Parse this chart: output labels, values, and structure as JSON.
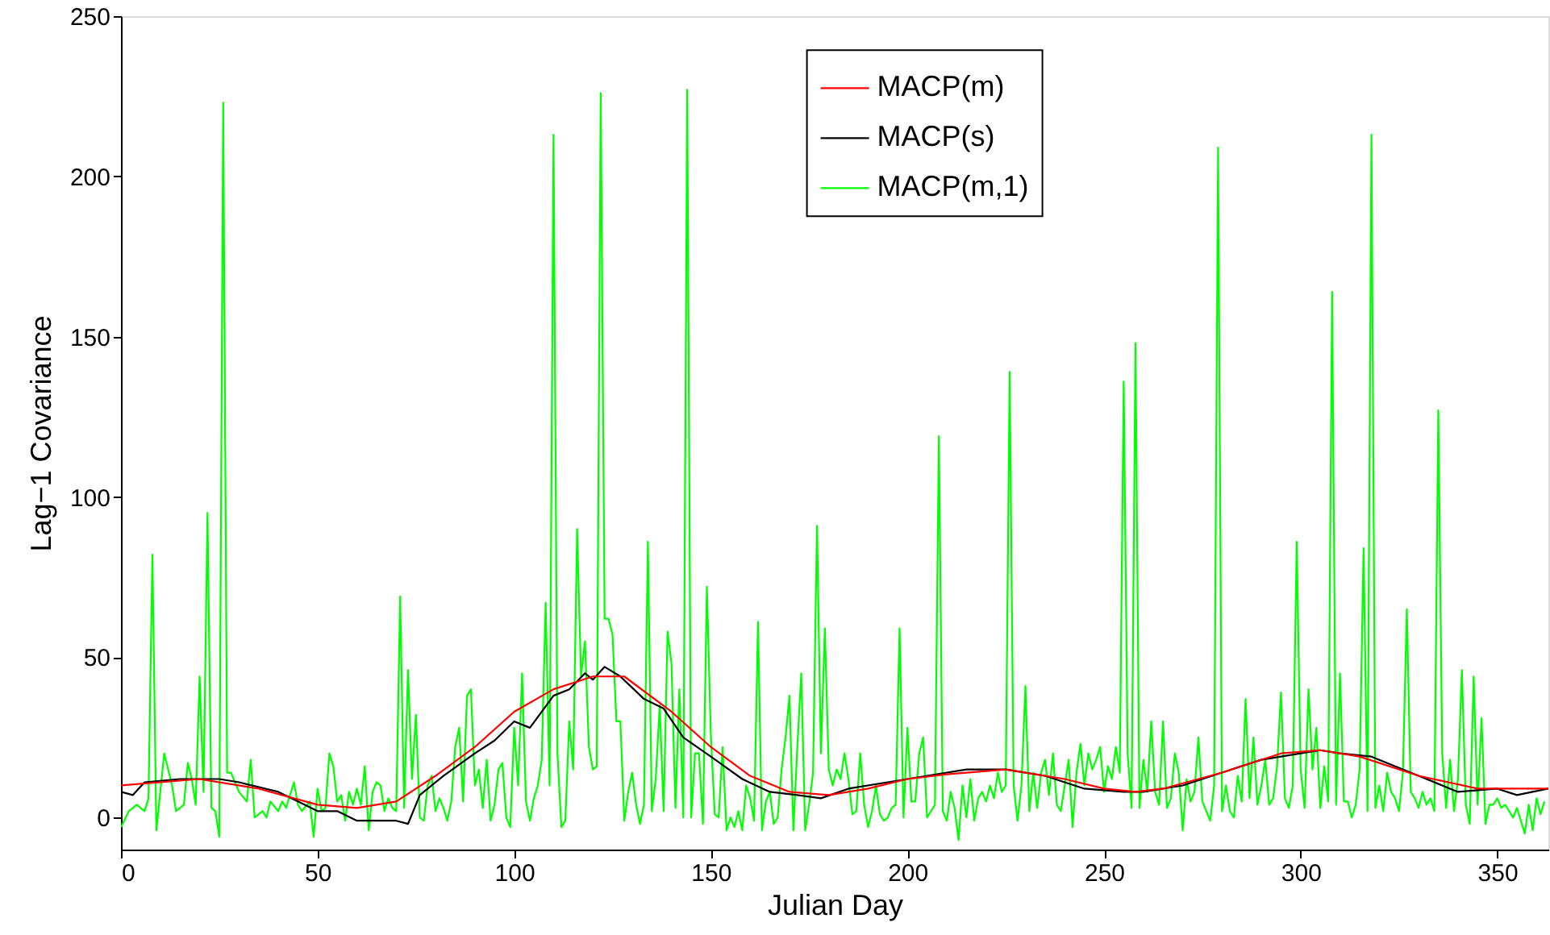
{
  "chart_data": {
    "type": "line",
    "xlabel": "Julian Day",
    "ylabel": "Lag−1 Covariance",
    "xlim": [
      0,
      363
    ],
    "ylim": [
      -10,
      250
    ],
    "xticks": [
      0,
      50,
      100,
      150,
      200,
      250,
      300,
      350
    ],
    "yticks": [
      0,
      50,
      100,
      150,
      200,
      250
    ],
    "grid": false,
    "legend": "top right",
    "marker": "none",
    "line_style": "solid",
    "series": [
      {
        "name": "MACP(m)",
        "color": "#ff0000",
        "x": [
          0,
          20,
          35,
          50,
          60,
          70,
          80,
          90,
          100,
          110,
          120,
          128,
          140,
          150,
          160,
          170,
          180,
          190,
          200,
          210,
          225,
          240,
          250,
          258,
          265,
          280,
          295,
          305,
          315,
          330,
          345,
          363
        ],
        "values": [
          10,
          12,
          9,
          4,
          3,
          5,
          13,
          22,
          33,
          40,
          44,
          44,
          33,
          22,
          13,
          8,
          7,
          9,
          12,
          13.5,
          15,
          12,
          9,
          8,
          9,
          14,
          20,
          21,
          19,
          13,
          9,
          9
        ]
      },
      {
        "name": "MACP(s)",
        "color": "#000000",
        "x": [
          0,
          3,
          6,
          15,
          25,
          30,
          40,
          45,
          50,
          55,
          60,
          65,
          70,
          73,
          76,
          82,
          90,
          95,
          100,
          104,
          110,
          114,
          118,
          120,
          123,
          127,
          133,
          138,
          143,
          150,
          158,
          165,
          172,
          178,
          185,
          195,
          205,
          215,
          225,
          235,
          245,
          255,
          260,
          270,
          280,
          290,
          300,
          305,
          310,
          318,
          330,
          340,
          350,
          355,
          363
        ],
        "values": [
          8,
          7,
          11,
          12,
          12,
          11,
          8,
          5,
          2,
          2,
          -1,
          -1,
          -1,
          -2,
          7,
          13,
          20,
          24,
          30,
          28,
          38,
          40,
          45,
          43,
          47,
          44,
          37,
          34,
          25,
          19,
          12,
          8,
          7,
          6,
          9,
          11,
          13,
          15,
          15,
          13,
          9,
          8,
          8,
          10,
          14,
          18,
          20,
          21,
          20,
          19,
          13,
          8,
          9,
          7,
          9
        ]
      },
      {
        "name": "MACP(m,1)",
        "color": "#00ff00",
        "x": [
          0,
          2,
          4,
          6,
          7,
          8,
          9,
          11,
          13,
          14,
          16,
          17,
          18,
          19,
          20,
          21,
          22,
          23,
          24,
          25,
          26,
          27,
          28,
          30,
          32,
          33,
          34,
          36,
          37,
          38,
          40,
          41,
          42,
          44,
          45,
          46,
          48,
          49,
          50,
          51,
          52,
          53,
          54,
          55,
          56,
          57,
          58,
          59,
          60,
          61,
          62,
          63,
          64,
          65,
          66,
          67,
          68,
          69,
          70,
          71,
          72,
          73,
          74,
          75,
          76,
          77,
          78,
          79,
          80,
          81,
          82,
          83,
          84,
          85,
          86,
          87,
          88,
          89,
          90,
          91,
          92,
          93,
          94,
          95,
          96,
          97,
          98,
          99,
          100,
          101,
          102,
          103,
          104,
          105,
          106,
          107,
          108,
          109,
          110,
          111,
          112,
          113,
          114,
          115,
          116,
          117,
          118,
          119,
          120,
          121,
          122,
          123,
          124,
          125,
          126,
          127,
          128,
          129,
          130,
          131,
          132,
          133,
          134,
          135,
          136,
          137,
          138,
          139,
          140,
          141,
          142,
          143,
          144,
          145,
          146,
          147,
          148,
          149,
          150,
          151,
          152,
          153,
          154,
          155,
          156,
          157,
          158,
          159,
          160,
          161,
          162,
          163,
          164,
          165,
          166,
          167,
          168,
          169,
          170,
          171,
          172,
          173,
          174,
          175,
          176,
          177,
          178,
          179,
          180,
          181,
          182,
          183,
          184,
          185,
          186,
          187,
          188,
          189,
          190,
          191,
          192,
          193,
          194,
          195,
          196,
          197,
          198,
          199,
          200,
          201,
          202,
          203,
          204,
          205,
          206,
          207,
          208,
          209,
          210,
          211,
          212,
          213,
          214,
          215,
          216,
          217,
          218,
          219,
          220,
          221,
          222,
          223,
          224,
          225,
          226,
          227,
          228,
          229,
          230,
          231,
          232,
          233,
          234,
          235,
          236,
          237,
          238,
          239,
          240,
          241,
          242,
          243,
          244,
          245,
          246,
          247,
          248,
          249,
          250,
          251,
          252,
          253,
          254,
          255,
          256,
          257,
          258,
          259,
          260,
          261,
          262,
          263,
          264,
          265,
          266,
          267,
          268,
          269,
          270,
          271,
          272,
          273,
          274,
          275,
          276,
          277,
          278,
          279,
          280,
          281,
          282,
          283,
          284,
          285,
          286,
          287,
          288,
          289,
          290,
          291,
          292,
          293,
          294,
          295,
          296,
          297,
          298,
          299,
          300,
          301,
          302,
          303,
          304,
          305,
          306,
          307,
          308,
          309,
          310,
          311,
          312,
          313,
          314,
          315,
          316,
          317,
          318,
          319,
          320,
          321,
          322,
          323,
          324,
          325,
          326,
          327,
          328,
          329,
          330,
          331,
          332,
          333,
          334,
          335,
          336,
          337,
          338,
          339,
          340,
          341,
          342,
          343,
          344,
          345,
          346,
          347,
          348,
          349,
          350,
          351,
          352,
          353,
          354,
          355,
          356,
          357,
          358,
          359,
          360,
          361,
          362
        ],
        "values": [
          -3,
          2,
          4,
          2,
          6,
          82,
          -4,
          20,
          10,
          2,
          4,
          17,
          12,
          4,
          44,
          8,
          95,
          3,
          2,
          -6,
          223,
          14,
          14,
          8,
          5,
          18,
          0,
          2,
          0,
          5,
          2,
          5,
          3,
          11,
          4,
          2,
          5,
          -6,
          9,
          2,
          3,
          20,
          16,
          5,
          7,
          -1,
          8,
          4,
          9,
          4,
          16,
          -4,
          8,
          11,
          10,
          2,
          6,
          3,
          2,
          69,
          3,
          46,
          12,
          32,
          0,
          -1,
          10,
          13,
          2,
          6,
          3,
          -1,
          5,
          22,
          28,
          5,
          38,
          40,
          10,
          15,
          3,
          18,
          -1,
          4,
          15,
          17,
          0,
          -3,
          28,
          10,
          45,
          5,
          -1,
          6,
          10,
          18,
          67,
          10,
          213,
          20,
          -3,
          -1,
          30,
          15,
          90,
          44,
          55,
          22,
          15,
          16,
          226,
          62,
          62,
          57,
          30,
          30,
          -1,
          8,
          14,
          4,
          -2,
          4,
          86,
          2,
          12,
          35,
          2,
          58,
          48,
          3,
          40,
          0,
          227,
          0,
          20,
          20,
          -2,
          72,
          26,
          1,
          0,
          22,
          -4,
          0,
          -3,
          2,
          -4,
          10,
          6,
          -1,
          61,
          -4,
          5,
          8,
          -2,
          0,
          15,
          25,
          38,
          -4,
          22,
          45,
          -4,
          4,
          14,
          91,
          20,
          59,
          15,
          10,
          15,
          12,
          20,
          12,
          1,
          2,
          20,
          4,
          -3,
          2,
          10,
          1,
          -1,
          0,
          3,
          4,
          59,
          0,
          28,
          5,
          5,
          20,
          25,
          0,
          2,
          4,
          119,
          2,
          -1,
          8,
          3,
          -7,
          10,
          0,
          12,
          -1,
          6,
          8,
          5,
          10,
          6,
          14,
          8,
          10,
          139,
          10,
          -1,
          10,
          41,
          2,
          14,
          3,
          14,
          18,
          7,
          20,
          4,
          2,
          10,
          18,
          -3,
          14,
          23,
          10,
          20,
          15,
          18,
          22,
          8,
          16,
          12,
          22,
          14,
          136,
          20,
          3,
          148,
          3,
          18,
          8,
          30,
          8,
          4,
          30,
          3,
          6,
          20,
          14,
          -4,
          12,
          5,
          8,
          25,
          5,
          2,
          -1,
          10,
          209,
          2,
          10,
          2,
          0,
          13,
          5,
          37,
          6,
          25,
          4,
          10,
          18,
          4,
          6,
          16,
          39,
          6,
          3,
          10,
          86,
          15,
          3,
          40,
          15,
          28,
          3,
          16,
          5,
          164,
          4,
          45,
          5,
          5,
          0,
          4,
          15,
          84,
          2,
          213,
          3,
          10,
          2,
          14,
          8,
          6,
          2,
          14,
          65,
          8,
          6,
          3,
          8,
          4,
          6,
          2,
          127,
          20,
          3,
          18,
          2,
          12,
          46,
          4,
          -2,
          44,
          4,
          31,
          -2,
          4,
          4,
          6,
          3,
          4,
          2,
          0,
          3,
          -1,
          -5,
          4,
          -4,
          6,
          1,
          5
        ]
      }
    ]
  }
}
